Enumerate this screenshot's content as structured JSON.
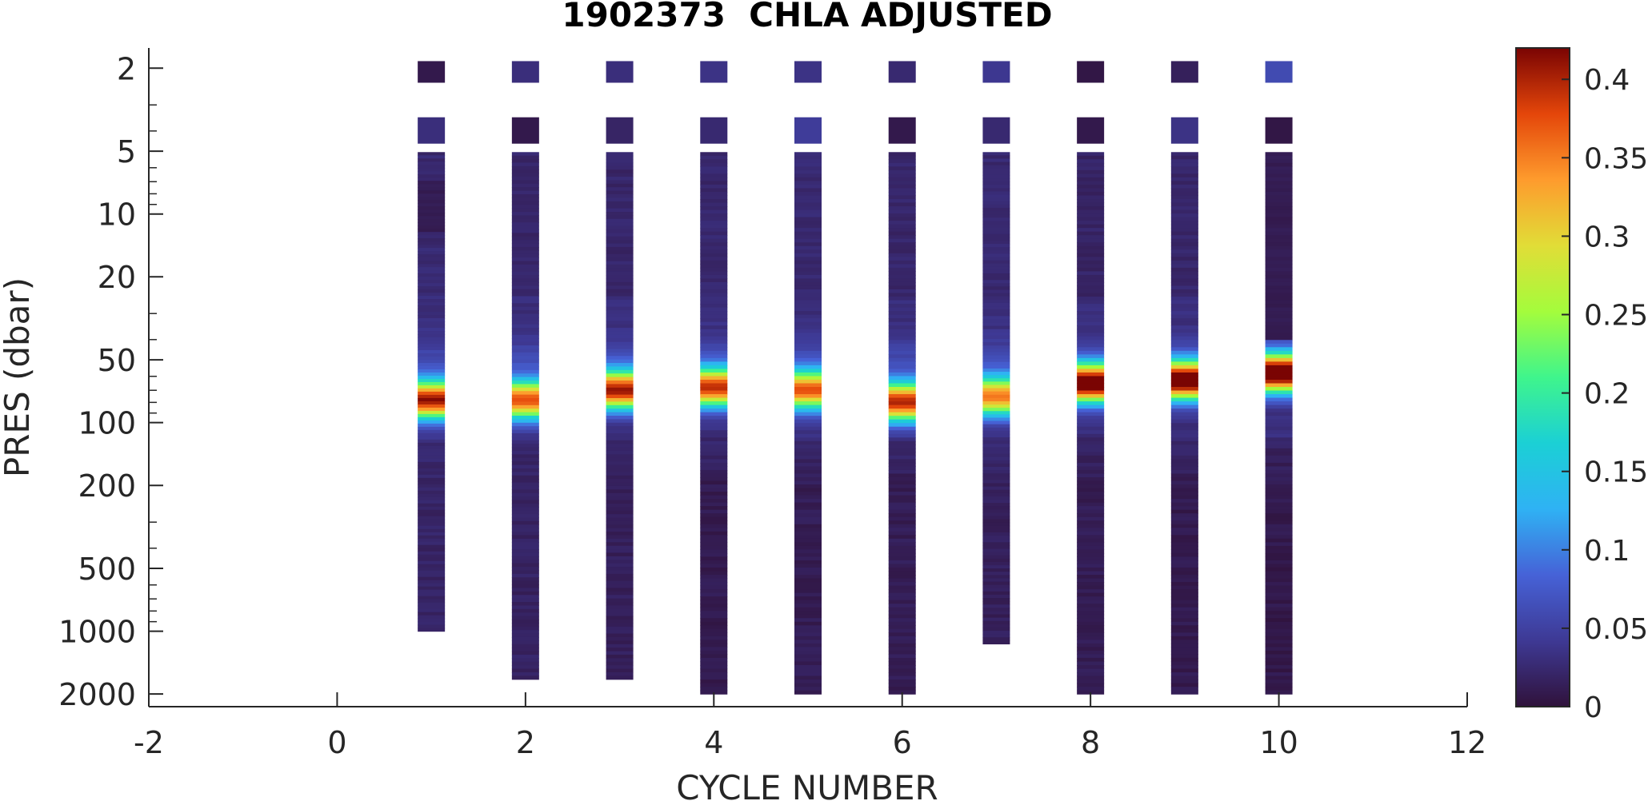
{
  "chart_data": {
    "type": "heatmap",
    "title": "1902373  CHLA ADJUSTED",
    "xlabel": "CYCLE NUMBER",
    "ylabel": "PRES (dbar)",
    "xlim": [
      -2,
      12
    ],
    "xticks": [
      "-2",
      "0",
      "2",
      "4",
      "6",
      "8",
      "10",
      "12"
    ],
    "ylim": [
      1.6,
      2300
    ],
    "yscale": "log",
    "yreversed": true,
    "yticks": [
      "2",
      "5",
      "10",
      "20",
      "50",
      "100",
      "200",
      "500",
      "1000",
      "2000"
    ],
    "colorbar": {
      "label": "",
      "range": [
        0,
        0.42
      ],
      "ticks": [
        "0",
        "0.05",
        "0.1",
        "0.15",
        "0.2",
        "0.25",
        "0.3",
        "0.35",
        "0.4"
      ],
      "colormap": "turbo"
    },
    "profiles": [
      {
        "cycle": 1,
        "maxpres": 1000,
        "surface": 0.008,
        "near": 0.03,
        "background": 0.025,
        "deep": 0.02,
        "dcm_pres": 78,
        "dcm_value": 0.38,
        "top_dark": [
          7,
          12
        ]
      },
      {
        "cycle": 2,
        "maxpres": 1700,
        "surface": 0.03,
        "near": 0.008,
        "background": 0.022,
        "deep": 0.018,
        "dcm_pres": 78,
        "dcm_value": 0.34,
        "top_dark": null
      },
      {
        "cycle": 3,
        "maxpres": 1700,
        "surface": 0.03,
        "near": 0.02,
        "background": 0.022,
        "deep": 0.015,
        "dcm_pres": 70,
        "dcm_value": 0.37,
        "top_dark": null
      },
      {
        "cycle": 4,
        "maxpres": 2000,
        "surface": 0.035,
        "near": 0.025,
        "background": 0.023,
        "deep": 0.01,
        "dcm_pres": 68,
        "dcm_value": 0.35,
        "top_dark": null
      },
      {
        "cycle": 5,
        "maxpres": 2000,
        "surface": 0.035,
        "near": 0.045,
        "background": 0.025,
        "deep": 0.012,
        "dcm_pres": 70,
        "dcm_value": 0.33,
        "top_dark": null
      },
      {
        "cycle": 6,
        "maxpres": 2000,
        "surface": 0.025,
        "near": 0.008,
        "background": 0.022,
        "deep": 0.012,
        "dcm_pres": 80,
        "dcm_value": 0.37,
        "top_dark": null
      },
      {
        "cycle": 7,
        "maxpres": 1150,
        "surface": 0.04,
        "near": 0.025,
        "background": 0.025,
        "deep": 0.015,
        "dcm_pres": 75,
        "dcm_value": 0.32,
        "top_dark": null
      },
      {
        "cycle": 8,
        "maxpres": 2000,
        "surface": 0.005,
        "near": 0.008,
        "background": 0.02,
        "deep": 0.012,
        "dcm_pres": 65,
        "dcm_value": 0.42,
        "top_dark": null
      },
      {
        "cycle": 9,
        "maxpres": 2000,
        "surface": 0.015,
        "near": 0.035,
        "background": 0.022,
        "deep": 0.01,
        "dcm_pres": 63,
        "dcm_value": 0.42,
        "top_dark": null
      },
      {
        "cycle": 10,
        "maxpres": 2000,
        "surface": 0.06,
        "near": 0.005,
        "background": 0.02,
        "deep": 0.008,
        "dcm_pres": 58,
        "dcm_value": 0.42,
        "top_dark": [
          5,
          40
        ]
      }
    ]
  }
}
